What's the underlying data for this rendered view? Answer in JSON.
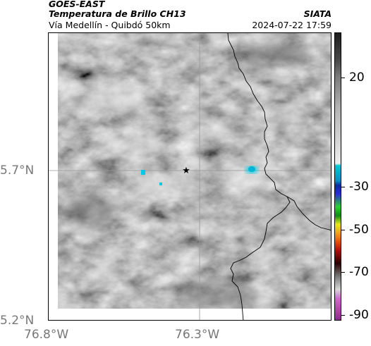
{
  "header": {
    "satellite": "GOES-EAST",
    "product": "Temperatura de Brillo CH13",
    "agency": "SIATA",
    "region": "Vía Medellín - Quibdó 50km",
    "datetime": "2024-07-22 17:59"
  },
  "axes": {
    "y_ticks": [
      "5.7°N",
      "5.2°N"
    ],
    "x_ticks": [
      "76.8°W",
      "76.3°W"
    ]
  },
  "colorbar": {
    "ticks": [
      "20",
      "-30",
      "-50",
      "-70",
      "-90"
    ],
    "stops": [
      {
        "value": 40,
        "color": "#1e1e1e"
      },
      {
        "value": 27,
        "color": "#4a4a4a"
      },
      {
        "value": 20,
        "color": "#7a7a7a"
      },
      {
        "value": 5,
        "color": "#b5b5b5"
      },
      {
        "value": -20,
        "color": "#ededed"
      },
      {
        "value": -21,
        "color": "#00c8d0"
      },
      {
        "value": -28,
        "color": "#0c8ec0"
      },
      {
        "value": -30,
        "color": "#0b2f9a"
      },
      {
        "value": -34,
        "color": "#2b2bd6"
      },
      {
        "value": -40,
        "color": "#2ed12e"
      },
      {
        "value": -44,
        "color": "#0e8a1a"
      },
      {
        "value": -48,
        "color": "#e8e81a"
      },
      {
        "value": -52,
        "color": "#f0a020"
      },
      {
        "value": -56,
        "color": "#e65010"
      },
      {
        "value": -60,
        "color": "#b0100c"
      },
      {
        "value": -66,
        "color": "#2a0000"
      },
      {
        "value": -72,
        "color": "#7a7a7a"
      },
      {
        "value": -78,
        "color": "#d8d8d8"
      },
      {
        "value": -82,
        "color": "#d06ad0"
      },
      {
        "value": -92,
        "color": "#902890"
      }
    ]
  },
  "map": {
    "grid_color": "#999999",
    "cold_cloud_color": "#00c8e0",
    "marker_icon": "star-icon"
  }
}
